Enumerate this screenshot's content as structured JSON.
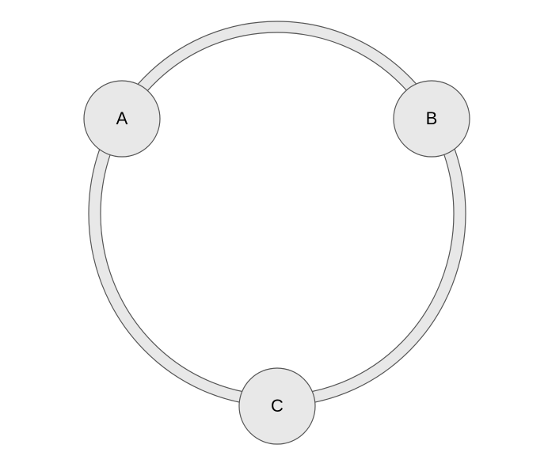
{
  "diagram": {
    "nodes": [
      {
        "id": "a",
        "label": "A"
      },
      {
        "id": "b",
        "label": "B"
      },
      {
        "id": "c",
        "label": "C"
      }
    ],
    "connections": [
      {
        "from": "A",
        "to": "B"
      },
      {
        "from": "B",
        "to": "C"
      },
      {
        "from": "C",
        "to": "A"
      }
    ]
  },
  "colors": {
    "ring_fill": "#e8e8e8",
    "ring_stroke": "#555555",
    "node_fill": "#e8e8e8",
    "node_stroke": "#555555",
    "label": "#000000"
  }
}
